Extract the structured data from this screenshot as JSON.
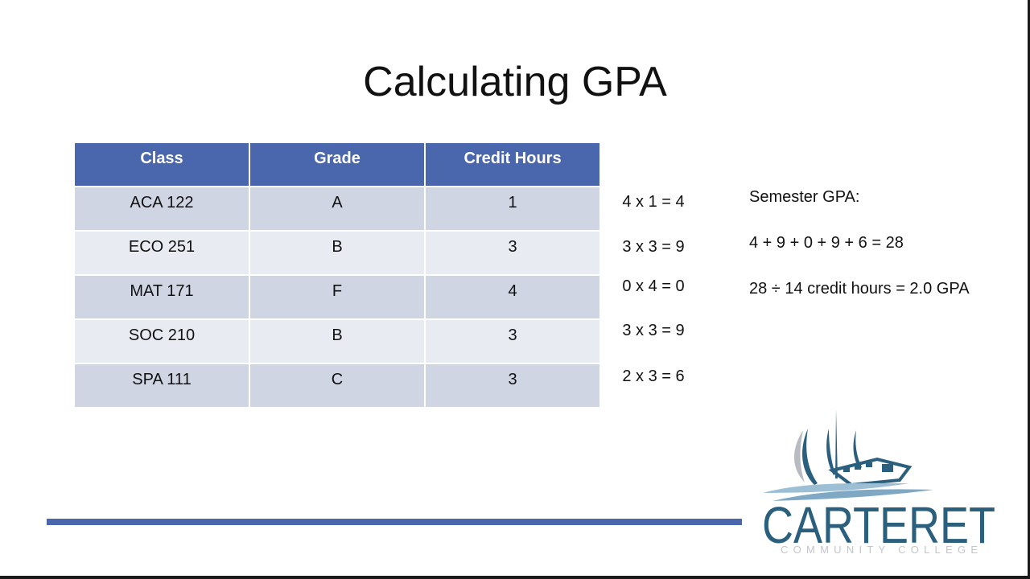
{
  "title": "Calculating GPA",
  "table": {
    "headers": [
      "Class",
      "Grade",
      "Credit Hours"
    ],
    "rows": [
      {
        "class": "ACA 122",
        "grade": "A",
        "hours": "1",
        "calc": "4 x 1 = 4"
      },
      {
        "class": "ECO 251",
        "grade": "B",
        "hours": "3",
        "calc": "3 x 3 = 9"
      },
      {
        "class": "MAT 171",
        "grade": "F",
        "hours": "4",
        "calc": "0 x 4 = 0"
      },
      {
        "class": "SOC 210",
        "grade": "B",
        "hours": "3",
        "calc": "3 x 3 = 9"
      },
      {
        "class": "SPA 111",
        "grade": "C",
        "hours": "3",
        "calc": "2 x 3 = 6"
      }
    ]
  },
  "summary": {
    "heading": "Semester GPA:",
    "sum_line": "4 + 9 + 0 + 9 + 6 = 28",
    "gpa_line": "28 ÷ 14 credit hours = 2.0 GPA"
  },
  "logo": {
    "name": "CARTERET",
    "subtitle": "COMMUNITY COLLEGE",
    "colors": {
      "primary": "#2a5f7e",
      "sail_gray": "#b8bcc2",
      "wave": "#7fa8c4"
    }
  },
  "colors": {
    "header": "#4a66ac",
    "row_dark": "#cfd5e3",
    "row_light": "#e9ebf3",
    "rule": "#4a66ac"
  }
}
